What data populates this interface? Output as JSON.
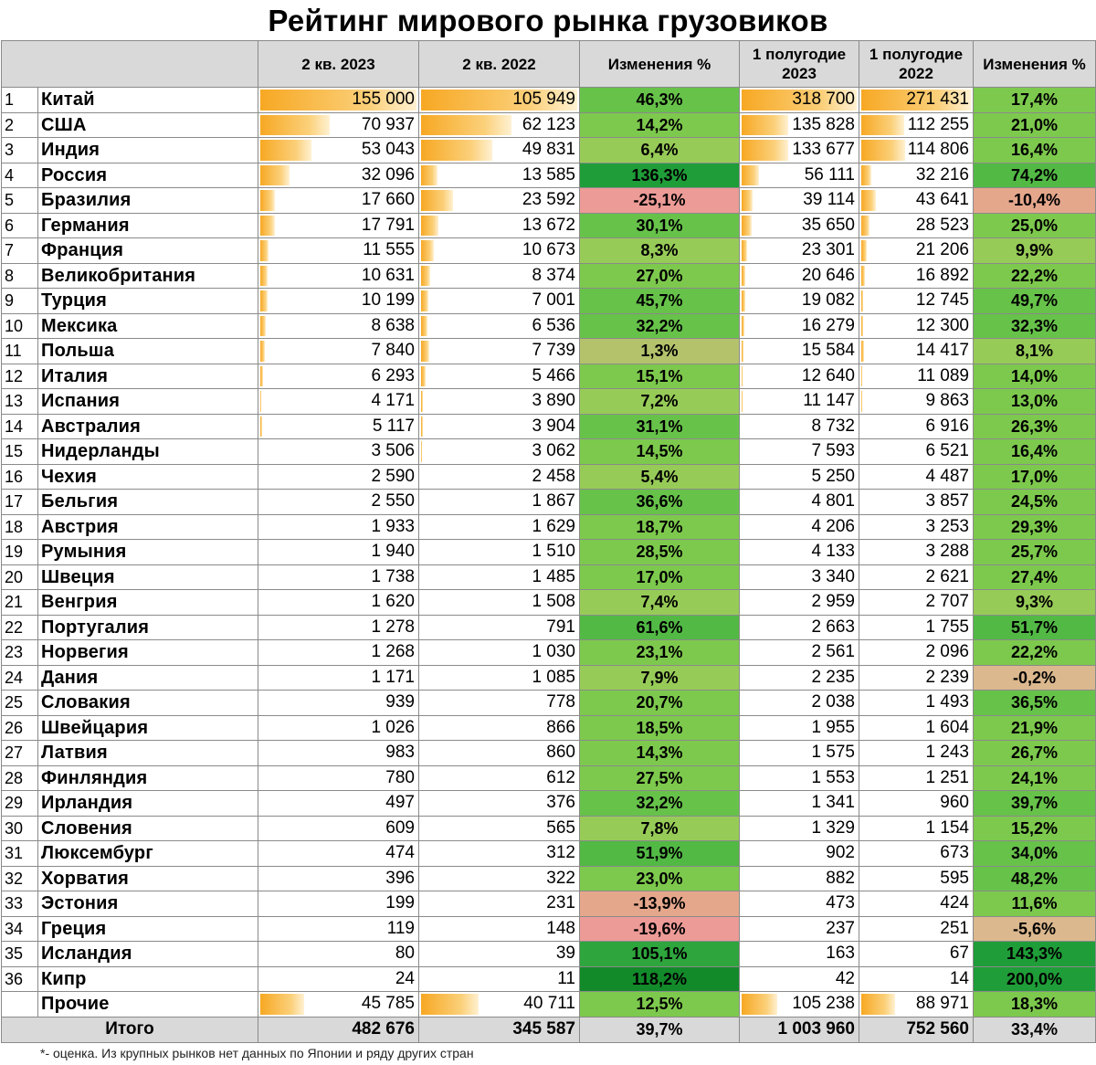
{
  "title": "Рейтинг мирового рынка грузовиков",
  "headers": [
    "",
    "2 кв. 2023",
    "2 кв. 2022",
    "Изменения %",
    "1 полугодие 2023",
    "1 полугодие 2022",
    "Изменения %"
  ],
  "rows": [
    {
      "rank": "1",
      "country": "Китай",
      "q2_2023": "155 000",
      "q2_2022": "105 949",
      "change_q": "46,3%",
      "h1_2023": "318 700",
      "h1_2022": "271 431",
      "change_h": "17,4%"
    },
    {
      "rank": "2",
      "country": "США",
      "q2_2023": "70 937",
      "q2_2022": "62 123",
      "change_q": "14,2%",
      "h1_2023": "135 828",
      "h1_2022": "112 255",
      "change_h": "21,0%"
    },
    {
      "rank": "3",
      "country": "Индия",
      "q2_2023": "53 043",
      "q2_2022": "49 831",
      "change_q": "6,4%",
      "h1_2023": "133 677",
      "h1_2022": "114 806",
      "change_h": "16,4%"
    },
    {
      "rank": "4",
      "country": "Россия",
      "q2_2023": "32 096",
      "q2_2022": "13 585",
      "change_q": "136,3%",
      "h1_2023": "56 111",
      "h1_2022": "32 216",
      "change_h": "74,2%"
    },
    {
      "rank": "5",
      "country": "Бразилия",
      "q2_2023": "17 660",
      "q2_2022": "23 592",
      "change_q": "-25,1%",
      "h1_2023": "39 114",
      "h1_2022": "43 641",
      "change_h": "-10,4%"
    },
    {
      "rank": "6",
      "country": "Германия",
      "q2_2023": "17 791",
      "q2_2022": "13 672",
      "change_q": "30,1%",
      "h1_2023": "35 650",
      "h1_2022": "28 523",
      "change_h": "25,0%"
    },
    {
      "rank": "7",
      "country": "Франция",
      "q2_2023": "11 555",
      "q2_2022": "10 673",
      "change_q": "8,3%",
      "h1_2023": "23 301",
      "h1_2022": "21 206",
      "change_h": "9,9%"
    },
    {
      "rank": "8",
      "country": "Великобритания",
      "q2_2023": "10 631",
      "q2_2022": "8 374",
      "change_q": "27,0%",
      "h1_2023": "20 646",
      "h1_2022": "16 892",
      "change_h": "22,2%"
    },
    {
      "rank": "9",
      "country": "Турция",
      "q2_2023": "10 199",
      "q2_2022": "7 001",
      "change_q": "45,7%",
      "h1_2023": "19 082",
      "h1_2022": "12 745",
      "change_h": "49,7%"
    },
    {
      "rank": "10",
      "country": "Мексика",
      "q2_2023": "8 638",
      "q2_2022": "6 536",
      "change_q": "32,2%",
      "h1_2023": "16 279",
      "h1_2022": "12 300",
      "change_h": "32,3%"
    },
    {
      "rank": "11",
      "country": "Польша",
      "q2_2023": "7 840",
      "q2_2022": "7 739",
      "change_q": "1,3%",
      "h1_2023": "15 584",
      "h1_2022": "14 417",
      "change_h": "8,1%"
    },
    {
      "rank": "12",
      "country": "Италия",
      "q2_2023": "6 293",
      "q2_2022": "5 466",
      "change_q": "15,1%",
      "h1_2023": "12 640",
      "h1_2022": "11 089",
      "change_h": "14,0%"
    },
    {
      "rank": "13",
      "country": "Испания",
      "q2_2023": "4 171",
      "q2_2022": "3 890",
      "change_q": "7,2%",
      "h1_2023": "11 147",
      "h1_2022": "9 863",
      "change_h": "13,0%"
    },
    {
      "rank": "14",
      "country": "Австралия",
      "q2_2023": "5 117",
      "q2_2022": "3 904",
      "change_q": "31,1%",
      "h1_2023": "8 732",
      "h1_2022": "6 916",
      "change_h": "26,3%"
    },
    {
      "rank": "15",
      "country": "Нидерланды",
      "q2_2023": "3 506",
      "q2_2022": "3 062",
      "change_q": "14,5%",
      "h1_2023": "7 593",
      "h1_2022": "6 521",
      "change_h": "16,4%"
    },
    {
      "rank": "16",
      "country": "Чехия",
      "q2_2023": "2 590",
      "q2_2022": "2 458",
      "change_q": "5,4%",
      "h1_2023": "5 250",
      "h1_2022": "4 487",
      "change_h": "17,0%"
    },
    {
      "rank": "17",
      "country": "Бельгия",
      "q2_2023": "2 550",
      "q2_2022": "1 867",
      "change_q": "36,6%",
      "h1_2023": "4 801",
      "h1_2022": "3 857",
      "change_h": "24,5%"
    },
    {
      "rank": "18",
      "country": "Австрия",
      "q2_2023": "1 933",
      "q2_2022": "1 629",
      "change_q": "18,7%",
      "h1_2023": "4 206",
      "h1_2022": "3 253",
      "change_h": "29,3%"
    },
    {
      "rank": "19",
      "country": "Румыния",
      "q2_2023": "1 940",
      "q2_2022": "1 510",
      "change_q": "28,5%",
      "h1_2023": "4 133",
      "h1_2022": "3 288",
      "change_h": "25,7%"
    },
    {
      "rank": "20",
      "country": "Швеция",
      "q2_2023": "1 738",
      "q2_2022": "1 485",
      "change_q": "17,0%",
      "h1_2023": "3 340",
      "h1_2022": "2 621",
      "change_h": "27,4%"
    },
    {
      "rank": "21",
      "country": "Венгрия",
      "q2_2023": "1 620",
      "q2_2022": "1 508",
      "change_q": "7,4%",
      "h1_2023": "2 959",
      "h1_2022": "2 707",
      "change_h": "9,3%"
    },
    {
      "rank": "22",
      "country": "Португалия",
      "q2_2023": "1 278",
      "q2_2022": "791",
      "change_q": "61,6%",
      "h1_2023": "2 663",
      "h1_2022": "1 755",
      "change_h": "51,7%"
    },
    {
      "rank": "23",
      "country": "Норвегия",
      "q2_2023": "1 268",
      "q2_2022": "1 030",
      "change_q": "23,1%",
      "h1_2023": "2 561",
      "h1_2022": "2 096",
      "change_h": "22,2%"
    },
    {
      "rank": "24",
      "country": "Дания",
      "q2_2023": "1 171",
      "q2_2022": "1 085",
      "change_q": "7,9%",
      "h1_2023": "2 235",
      "h1_2022": "2 239",
      "change_h": "-0,2%"
    },
    {
      "rank": "25",
      "country": "Словакия",
      "q2_2023": "939",
      "q2_2022": "778",
      "change_q": "20,7%",
      "h1_2023": "2 038",
      "h1_2022": "1 493",
      "change_h": "36,5%"
    },
    {
      "rank": "26",
      "country": "Швейцария",
      "q2_2023": "1 026",
      "q2_2022": "866",
      "change_q": "18,5%",
      "h1_2023": "1 955",
      "h1_2022": "1 604",
      "change_h": "21,9%"
    },
    {
      "rank": "27",
      "country": "Латвия",
      "q2_2023": "983",
      "q2_2022": "860",
      "change_q": "14,3%",
      "h1_2023": "1 575",
      "h1_2022": "1 243",
      "change_h": "26,7%"
    },
    {
      "rank": "28",
      "country": "Финляндия",
      "q2_2023": "780",
      "q2_2022": "612",
      "change_q": "27,5%",
      "h1_2023": "1 553",
      "h1_2022": "1 251",
      "change_h": "24,1%"
    },
    {
      "rank": "29",
      "country": "Ирландия",
      "q2_2023": "497",
      "q2_2022": "376",
      "change_q": "32,2%",
      "h1_2023": "1 341",
      "h1_2022": "960",
      "change_h": "39,7%"
    },
    {
      "rank": "30",
      "country": "Словения",
      "q2_2023": "609",
      "q2_2022": "565",
      "change_q": "7,8%",
      "h1_2023": "1 329",
      "h1_2022": "1 154",
      "change_h": "15,2%"
    },
    {
      "rank": "31",
      "country": "Люксембург",
      "q2_2023": "474",
      "q2_2022": "312",
      "change_q": "51,9%",
      "h1_2023": "902",
      "h1_2022": "673",
      "change_h": "34,0%"
    },
    {
      "rank": "32",
      "country": "Хорватия",
      "q2_2023": "396",
      "q2_2022": "322",
      "change_q": "23,0%",
      "h1_2023": "882",
      "h1_2022": "595",
      "change_h": "48,2%"
    },
    {
      "rank": "33",
      "country": "Эстония",
      "q2_2023": "199",
      "q2_2022": "231",
      "change_q": "-13,9%",
      "h1_2023": "473",
      "h1_2022": "424",
      "change_h": "11,6%"
    },
    {
      "rank": "34",
      "country": "Греция",
      "q2_2023": "119",
      "q2_2022": "148",
      "change_q": "-19,6%",
      "h1_2023": "237",
      "h1_2022": "251",
      "change_h": "-5,6%"
    },
    {
      "rank": "35",
      "country": "Исландия",
      "q2_2023": "80",
      "q2_2022": "39",
      "change_q": "105,1%",
      "h1_2023": "163",
      "h1_2022": "67",
      "change_h": "143,3%"
    },
    {
      "rank": "36",
      "country": "Кипр",
      "q2_2023": "24",
      "q2_2022": "11",
      "change_q": "118,2%",
      "h1_2023": "42",
      "h1_2022": "14",
      "change_h": "200,0%"
    },
    {
      "rank": "",
      "country": "Прочие",
      "q2_2023": "45 785",
      "q2_2022": "40 711",
      "change_q": "12,5%",
      "h1_2023": "105 238",
      "h1_2022": "88 971",
      "change_h": "18,3%"
    }
  ],
  "total": {
    "label": "Итого",
    "q2_2023": "482 676",
    "q2_2022": "345 587",
    "change_q": "39,7%",
    "h1_2023": "1 003 960",
    "h1_2022": "752 560",
    "change_h": "33,4%"
  },
  "footnote": "*- оценка. Из крупных рынков нет данных по Японии и ряду других стран",
  "colors": {
    "header_bg": "#d9d9d9",
    "bar_orange": "#f7a823",
    "grid": "#8a8a8a"
  }
}
